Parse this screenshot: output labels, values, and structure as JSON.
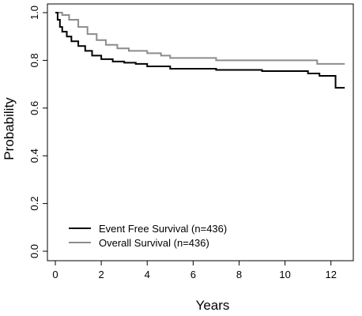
{
  "chart_data": {
    "type": "line",
    "title": "",
    "xlabel": "Years",
    "ylabel": "Probability",
    "xlim": [
      0,
      13
    ],
    "ylim": [
      0,
      1.0
    ],
    "x_ticks": [
      0,
      2,
      4,
      6,
      8,
      10,
      12
    ],
    "y_ticks": [
      0.0,
      0.2,
      0.4,
      0.6,
      0.8,
      1.0
    ],
    "x_tick_labels": [
      "0",
      "2",
      "4",
      "6",
      "8",
      "10",
      "12"
    ],
    "y_tick_labels": [
      "0.0",
      "0.2",
      "0.4",
      "0.6",
      "0.8",
      "1.0"
    ],
    "grid": false,
    "legend_position": "bottom-left",
    "series": [
      {
        "name": "Event Free Survival (n=436)",
        "color": "#000000",
        "step": true,
        "x": [
          0,
          0.1,
          0.2,
          0.3,
          0.5,
          0.7,
          1.0,
          1.3,
          1.6,
          2.0,
          2.5,
          3.0,
          3.5,
          4.0,
          5.0,
          6.0,
          7.0,
          8.0,
          9.0,
          10.0,
          11.0,
          11.5,
          12.2,
          12.6
        ],
        "y": [
          1.0,
          0.97,
          0.94,
          0.92,
          0.9,
          0.88,
          0.86,
          0.84,
          0.82,
          0.805,
          0.795,
          0.79,
          0.785,
          0.775,
          0.765,
          0.765,
          0.76,
          0.76,
          0.755,
          0.755,
          0.745,
          0.735,
          0.685,
          0.685
        ]
      },
      {
        "name": "Overall Survival (n=436)",
        "color": "#8c8c8c",
        "step": true,
        "x": [
          0,
          0.3,
          0.6,
          1.0,
          1.4,
          1.8,
          2.2,
          2.7,
          3.2,
          4.0,
          4.6,
          5.0,
          6.0,
          7.0,
          8.0,
          9.0,
          10.0,
          11.4,
          12.6
        ],
        "y": [
          1.0,
          0.99,
          0.97,
          0.94,
          0.91,
          0.885,
          0.865,
          0.85,
          0.84,
          0.83,
          0.82,
          0.81,
          0.81,
          0.8,
          0.8,
          0.8,
          0.8,
          0.785,
          0.785
        ]
      }
    ]
  }
}
